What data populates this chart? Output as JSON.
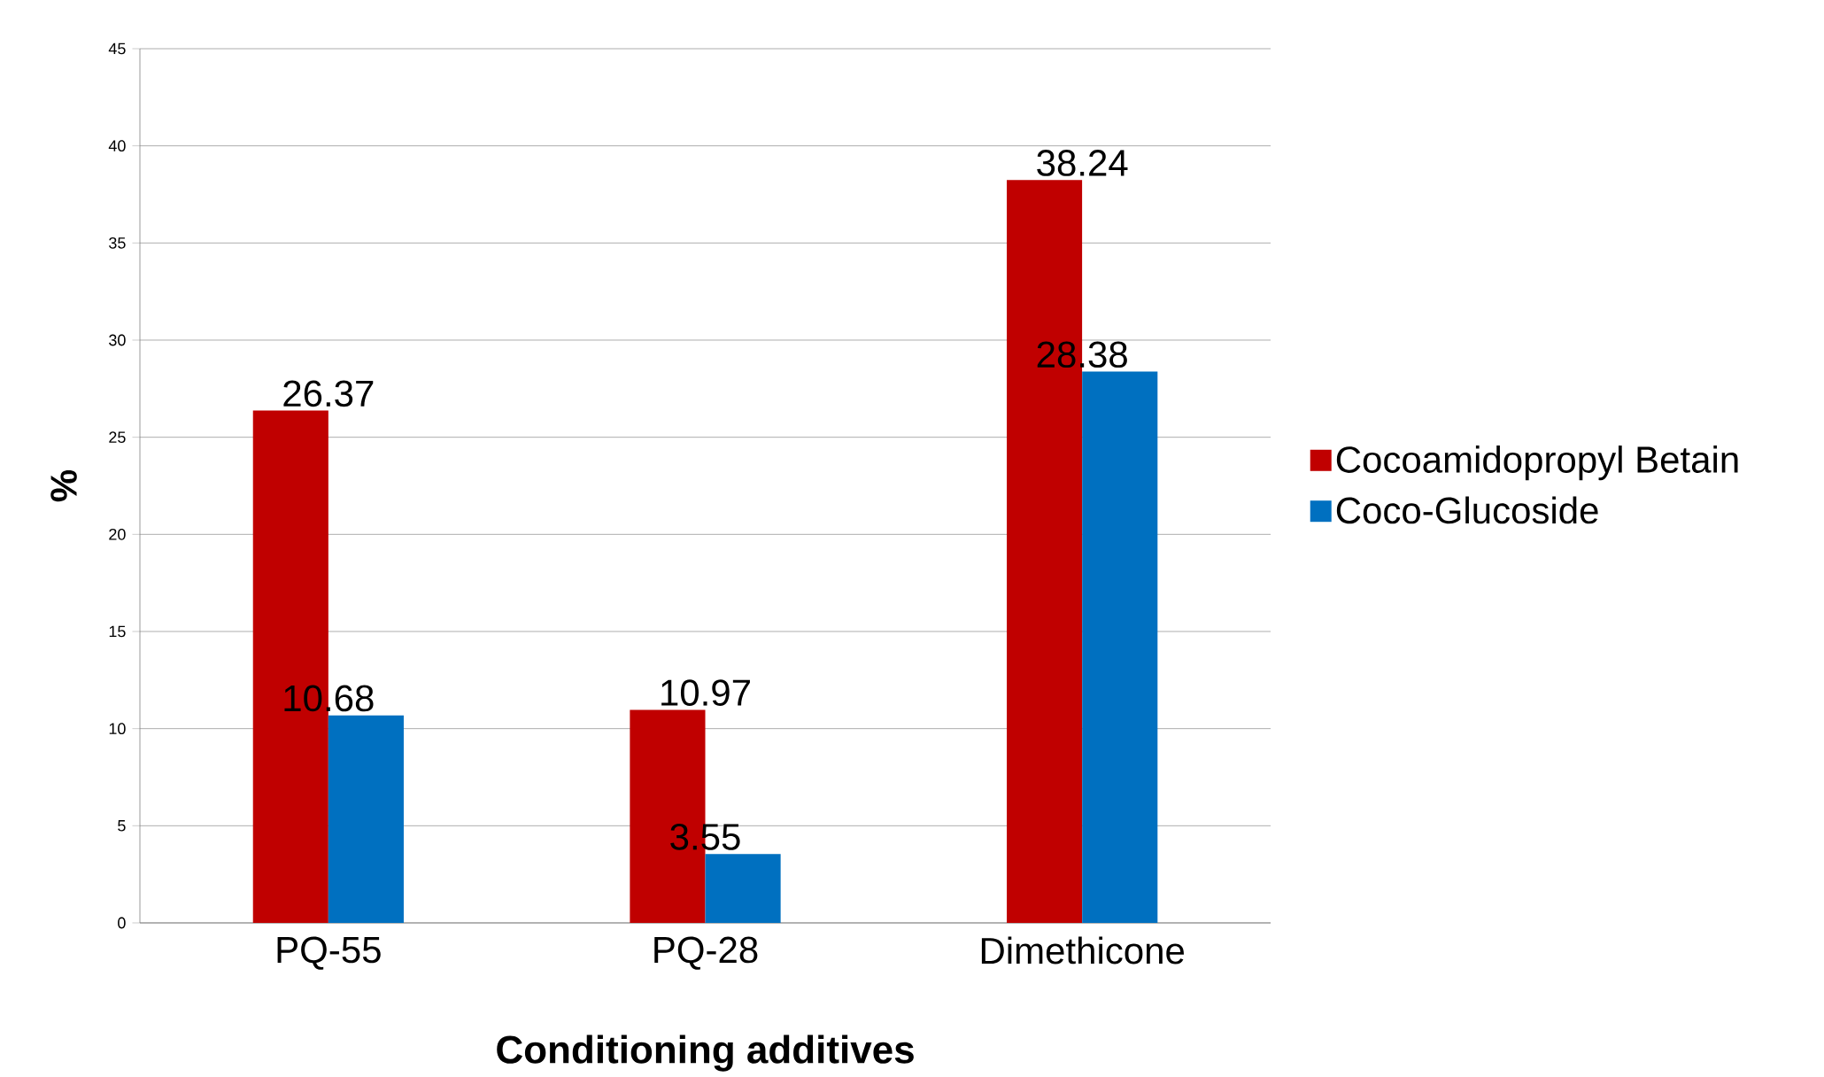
{
  "chart_data": {
    "type": "bar",
    "xlabel": "Conditioning additives",
    "ylabel": "%",
    "categories": [
      "PQ-55",
      "PQ-28",
      "Dimethicone"
    ],
    "series": [
      {
        "name": "Cocoamidopropyl Betain",
        "color": "#c00000",
        "values": [
          26.37,
          10.97,
          38.24
        ]
      },
      {
        "name": "Coco-Glucoside",
        "color": "#0070c0",
        "values": [
          10.68,
          3.55,
          28.38
        ]
      }
    ],
    "ylim": [
      0,
      45
    ],
    "yticks": [
      0,
      5,
      10,
      15,
      20,
      25,
      30,
      35,
      40,
      45
    ],
    "grid": "y",
    "legend": "right",
    "data_labels": true
  }
}
